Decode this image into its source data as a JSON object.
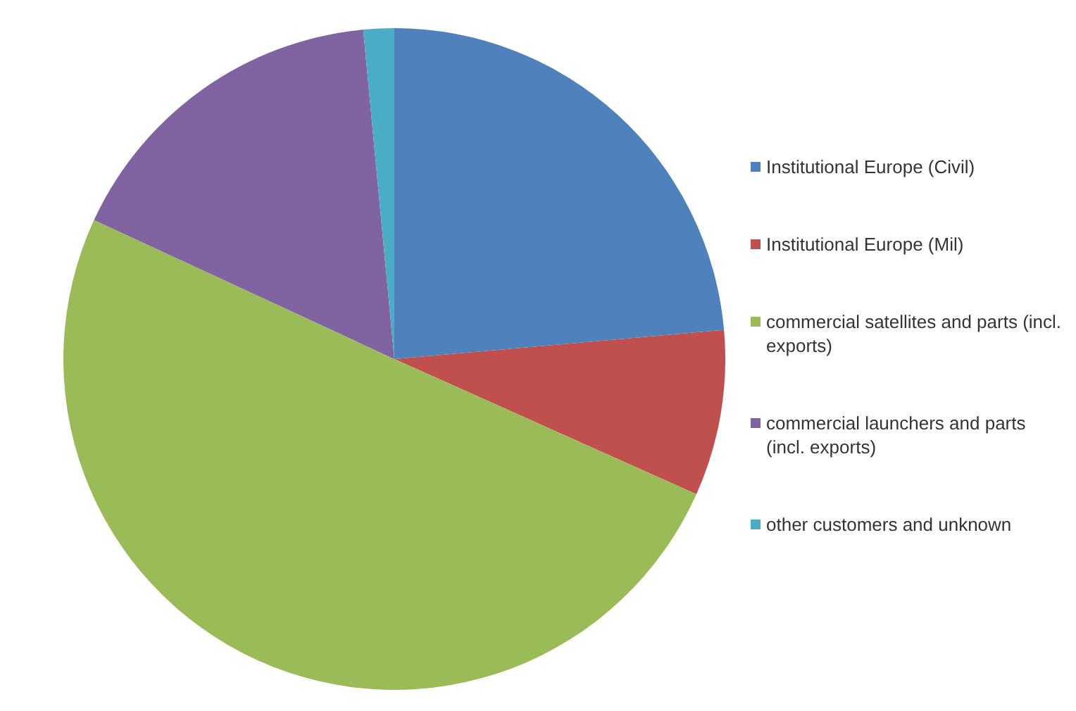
{
  "chart_data": {
    "type": "pie",
    "categories": [
      "Institutional Europe (Civil)",
      "Institutional Europe (Mil)",
      "commercial satellites and parts (incl. exports)",
      "commercial launchers and parts (incl. exports)",
      "other customers and unknown"
    ],
    "values": [
      23.6,
      8.1,
      50.2,
      16.6,
      1.5
    ],
    "colors": [
      "#4f81bd",
      "#c0504d",
      "#9bbb59",
      "#8064a2",
      "#4bacc6"
    ],
    "legend": "right"
  }
}
